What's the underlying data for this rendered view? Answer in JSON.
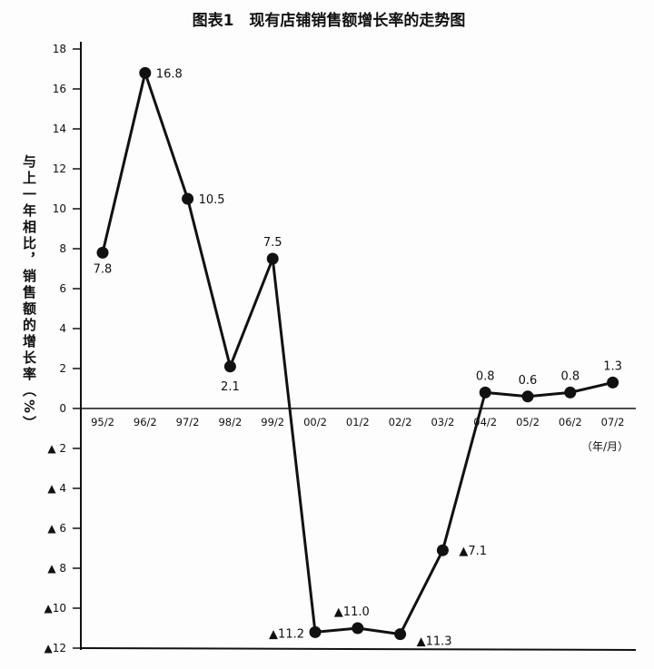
{
  "chart_data": {
    "type": "line",
    "title": "图表1　现有店铺销售额增长率的走势图",
    "ylabel": "与上一年相比，销售额的增长率（%）",
    "xlabel": "（年/月）",
    "categories": [
      "95/2",
      "96/2",
      "97/2",
      "98/2",
      "99/2",
      "00/2",
      "01/2",
      "02/2",
      "03/2",
      "04/2",
      "05/2",
      "06/2",
      "07/2"
    ],
    "values": [
      7.8,
      16.8,
      10.5,
      2.1,
      7.5,
      -11.2,
      -11.0,
      -11.3,
      -7.1,
      0.8,
      0.6,
      0.8,
      1.3
    ],
    "data_labels": [
      "7.8",
      "16.8",
      "10.5",
      "2.1",
      "7.5",
      "▲11.2",
      "▲11.0",
      "▲11.3",
      "▲7.1",
      "0.8",
      "0.6",
      "0.8",
      "1.3"
    ],
    "ylim": [
      -12,
      18
    ],
    "yticks": [
      18,
      16,
      14,
      12,
      10,
      8,
      6,
      4,
      2,
      0,
      -2,
      -4,
      -6,
      -8,
      -10,
      -12
    ],
    "ytick_labels": [
      "18",
      "16",
      "14",
      "12",
      "10",
      "8",
      "6",
      "4",
      "2",
      "0",
      "▲ 2",
      "▲ 4",
      "▲ 6",
      "▲ 8",
      "▲10",
      "▲12"
    ],
    "grid": false,
    "marker": "filled-circle",
    "line_color": "#111111"
  }
}
